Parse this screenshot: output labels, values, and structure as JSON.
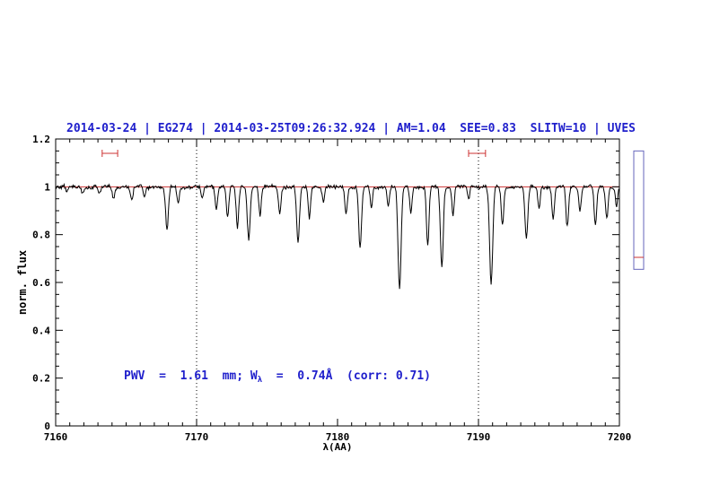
{
  "title": {
    "text": "2014-03-24 | EG274 | 2014-03-25T09:26:32.924 | AM=1.04  SEE=0.83  SLITW=10 | UVES",
    "color": "#2020cc"
  },
  "annotation": {
    "prefix": "PWV  =  1.61  mm; W",
    "sub": "λ",
    "suffix": "  =  0.74Å  (corr: 0.71)",
    "color": "#2020cc"
  },
  "side_panel": {
    "border_color": "#6666bb",
    "red_line_color": "#cc3333",
    "top_flux": 1.15,
    "bottom_flux": 0.655,
    "red_line_flux": 0.705
  },
  "chart_data": {
    "type": "line",
    "title": "2014-03-24 | EG274 | 2014-03-25T09:26:32.924 | AM=1.04  SEE=0.83  SLITW=10 | UVES",
    "xlabel": "λ(AA)",
    "ylabel": "norm. flux",
    "xlim": [
      7160,
      7200
    ],
    "ylim": [
      0,
      1.2
    ],
    "x_major_ticks": [
      7160,
      7170,
      7180,
      7190,
      7200
    ],
    "x_tick_labels": [
      "7160",
      "7170",
      "7180",
      "7190",
      "7200"
    ],
    "x_minor_step": 1,
    "y_major_ticks": [
      0,
      0.2,
      0.4,
      0.6,
      0.8,
      1,
      1.2
    ],
    "y_tick_labels": [
      "0",
      "0.2",
      "0.4",
      "0.6",
      "0.8",
      "1",
      "1.2"
    ],
    "y_minor_step": 0.05,
    "grid": false,
    "continuum": {
      "level": 1.0,
      "color": "#cc3333"
    },
    "dotted_vlines": [
      7170,
      7190
    ],
    "vline_color": "#000000",
    "range_markers": [
      {
        "x1": 7163.3,
        "x2": 7164.4,
        "y": 1.14
      },
      {
        "x1": 7189.3,
        "x2": 7190.5,
        "y": 1.14
      }
    ],
    "marker_color": "#cc3333",
    "spectrum": {
      "color": "#000000",
      "sample_step": 0.05,
      "noise_amplitude": 0.0075,
      "absorption_lines": [
        {
          "center": 7160.8,
          "depth": 0.025,
          "sigma": 0.08
        },
        {
          "center": 7161.9,
          "depth": 0.03,
          "sigma": 0.08
        },
        {
          "center": 7163.1,
          "depth": 0.03,
          "sigma": 0.08
        },
        {
          "center": 7164.1,
          "depth": 0.045,
          "sigma": 0.09
        },
        {
          "center": 7165.4,
          "depth": 0.055,
          "sigma": 0.09
        },
        {
          "center": 7166.3,
          "depth": 0.04,
          "sigma": 0.08
        },
        {
          "center": 7167.9,
          "depth": 0.18,
          "sigma": 0.1
        },
        {
          "center": 7168.7,
          "depth": 0.07,
          "sigma": 0.08
        },
        {
          "center": 7170.4,
          "depth": 0.05,
          "sigma": 0.08
        },
        {
          "center": 7171.4,
          "depth": 0.09,
          "sigma": 0.08
        },
        {
          "center": 7172.2,
          "depth": 0.13,
          "sigma": 0.09
        },
        {
          "center": 7172.9,
          "depth": 0.17,
          "sigma": 0.09
        },
        {
          "center": 7173.7,
          "depth": 0.22,
          "sigma": 0.1
        },
        {
          "center": 7174.5,
          "depth": 0.12,
          "sigma": 0.08
        },
        {
          "center": 7175.9,
          "depth": 0.11,
          "sigma": 0.09
        },
        {
          "center": 7177.2,
          "depth": 0.24,
          "sigma": 0.1
        },
        {
          "center": 7178.0,
          "depth": 0.13,
          "sigma": 0.08
        },
        {
          "center": 7179.0,
          "depth": 0.06,
          "sigma": 0.08
        },
        {
          "center": 7180.6,
          "depth": 0.11,
          "sigma": 0.09
        },
        {
          "center": 7181.6,
          "depth": 0.26,
          "sigma": 0.1
        },
        {
          "center": 7182.4,
          "depth": 0.09,
          "sigma": 0.08
        },
        {
          "center": 7183.6,
          "depth": 0.08,
          "sigma": 0.08
        },
        {
          "center": 7184.4,
          "depth": 0.43,
          "sigma": 0.11
        },
        {
          "center": 7185.2,
          "depth": 0.11,
          "sigma": 0.08
        },
        {
          "center": 7186.4,
          "depth": 0.25,
          "sigma": 0.09
        },
        {
          "center": 7187.4,
          "depth": 0.34,
          "sigma": 0.1
        },
        {
          "center": 7188.2,
          "depth": 0.12,
          "sigma": 0.08
        },
        {
          "center": 7189.3,
          "depth": 0.05,
          "sigma": 0.08
        },
        {
          "center": 7190.9,
          "depth": 0.41,
          "sigma": 0.11
        },
        {
          "center": 7191.7,
          "depth": 0.16,
          "sigma": 0.09
        },
        {
          "center": 7193.4,
          "depth": 0.22,
          "sigma": 0.1
        },
        {
          "center": 7194.3,
          "depth": 0.09,
          "sigma": 0.08
        },
        {
          "center": 7195.3,
          "depth": 0.13,
          "sigma": 0.09
        },
        {
          "center": 7196.3,
          "depth": 0.17,
          "sigma": 0.09
        },
        {
          "center": 7197.2,
          "depth": 0.1,
          "sigma": 0.08
        },
        {
          "center": 7198.3,
          "depth": 0.16,
          "sigma": 0.09
        },
        {
          "center": 7199.1,
          "depth": 0.13,
          "sigma": 0.09
        },
        {
          "center": 7199.8,
          "depth": 0.08,
          "sigma": 0.08
        }
      ]
    }
  }
}
